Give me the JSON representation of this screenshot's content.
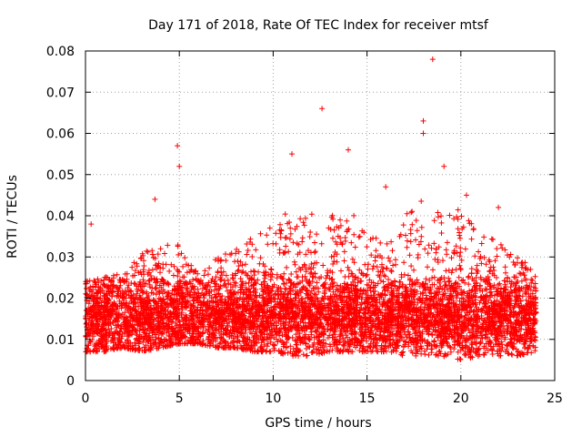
{
  "chart_data": {
    "type": "scatter",
    "title": "Day 171 of 2018, Rate Of TEC Index for receiver mtsf",
    "xlabel": "GPS time / hours",
    "ylabel": "ROTI / TECUs",
    "xlim": [
      0,
      25
    ],
    "ylim": [
      0,
      0.08
    ],
    "xticks": [
      0,
      5,
      10,
      15,
      20,
      25
    ],
    "xtick_labels": [
      "0",
      "5",
      "10",
      "15",
      "20",
      "25"
    ],
    "yticks": [
      0,
      0.01,
      0.02,
      0.03,
      0.04,
      0.05,
      0.06,
      0.07,
      0.08
    ],
    "ytick_labels": [
      "0",
      "0.01",
      "0.02",
      "0.03",
      "0.04",
      "0.05",
      "0.06",
      "0.07",
      "0.08"
    ],
    "grid": true,
    "marker": "+",
    "color": "#ff0000",
    "x_range_observed": [
      0,
      24
    ],
    "notable_points": [
      {
        "x": 0.3,
        "y": 0.038
      },
      {
        "x": 3.7,
        "y": 0.044
      },
      {
        "x": 4.9,
        "y": 0.057
      },
      {
        "x": 5.0,
        "y": 0.052
      },
      {
        "x": 11.0,
        "y": 0.055
      },
      {
        "x": 12.6,
        "y": 0.066
      },
      {
        "x": 14.0,
        "y": 0.056
      },
      {
        "x": 16.0,
        "y": 0.047
      },
      {
        "x": 18.0,
        "y": 0.063
      },
      {
        "x": 18.0,
        "y": 0.06
      },
      {
        "x": 18.5,
        "y": 0.078
      },
      {
        "x": 19.1,
        "y": 0.052
      },
      {
        "x": 20.3,
        "y": 0.045
      },
      {
        "x": 22.0,
        "y": 0.042
      }
    ],
    "envelope": [
      {
        "x": 0,
        "low": 0.007,
        "high": 0.024
      },
      {
        "x": 1,
        "low": 0.007,
        "high": 0.025
      },
      {
        "x": 2,
        "low": 0.008,
        "high": 0.026
      },
      {
        "x": 3,
        "low": 0.007,
        "high": 0.031
      },
      {
        "x": 4,
        "low": 0.008,
        "high": 0.034
      },
      {
        "x": 5,
        "low": 0.009,
        "high": 0.033
      },
      {
        "x": 6,
        "low": 0.009,
        "high": 0.026
      },
      {
        "x": 7,
        "low": 0.008,
        "high": 0.03
      },
      {
        "x": 8,
        "low": 0.008,
        "high": 0.032
      },
      {
        "x": 9,
        "low": 0.007,
        "high": 0.035
      },
      {
        "x": 10,
        "low": 0.007,
        "high": 0.038
      },
      {
        "x": 11,
        "low": 0.006,
        "high": 0.042
      },
      {
        "x": 12,
        "low": 0.006,
        "high": 0.045
      },
      {
        "x": 13,
        "low": 0.007,
        "high": 0.04
      },
      {
        "x": 14,
        "low": 0.007,
        "high": 0.042
      },
      {
        "x": 15,
        "low": 0.007,
        "high": 0.036
      },
      {
        "x": 16,
        "low": 0.007,
        "high": 0.034
      },
      {
        "x": 17,
        "low": 0.006,
        "high": 0.04
      },
      {
        "x": 18,
        "low": 0.006,
        "high": 0.045
      },
      {
        "x": 19,
        "low": 0.006,
        "high": 0.04
      },
      {
        "x": 20,
        "low": 0.005,
        "high": 0.042
      },
      {
        "x": 21,
        "low": 0.006,
        "high": 0.036
      },
      {
        "x": 22,
        "low": 0.006,
        "high": 0.035
      },
      {
        "x": 23,
        "low": 0.006,
        "high": 0.03
      },
      {
        "x": 24,
        "low": 0.007,
        "high": 0.027
      }
    ],
    "typical_center": 0.016,
    "points_per_hour": 260
  }
}
